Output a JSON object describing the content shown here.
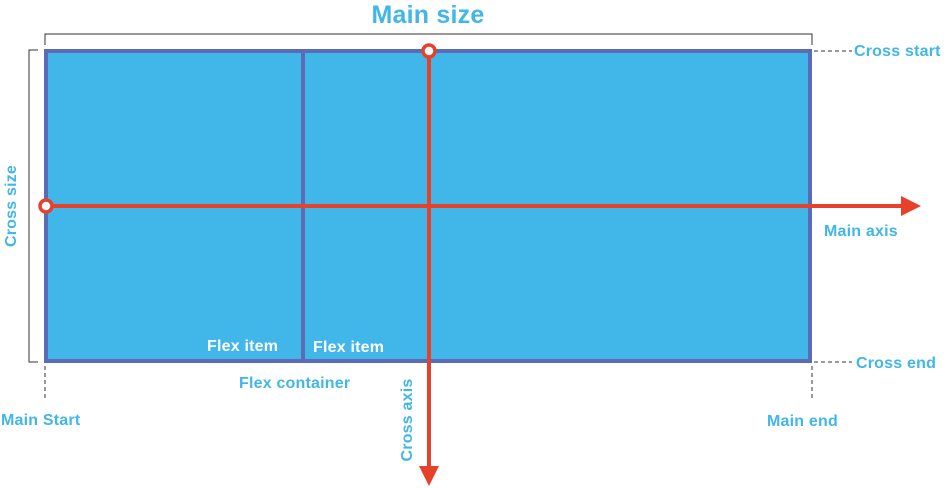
{
  "labels": {
    "main_size": "Main size",
    "cross_size": "Cross size",
    "cross_start": "Cross start",
    "cross_end": "Cross end",
    "main_axis": "Main axis",
    "cross_axis": "Cross axis",
    "main_start": "Main Start",
    "main_end": "Main end",
    "flex_container": "Flex container",
    "flex_item_1": "Flex item",
    "flex_item_2": "Flex item"
  },
  "colors": {
    "fill": "#41b6e8",
    "border": "#5b6bb5",
    "axis": "#e8412b",
    "label": "#41b6e8",
    "bracket": "#333333",
    "item_text": "#ffffff"
  }
}
